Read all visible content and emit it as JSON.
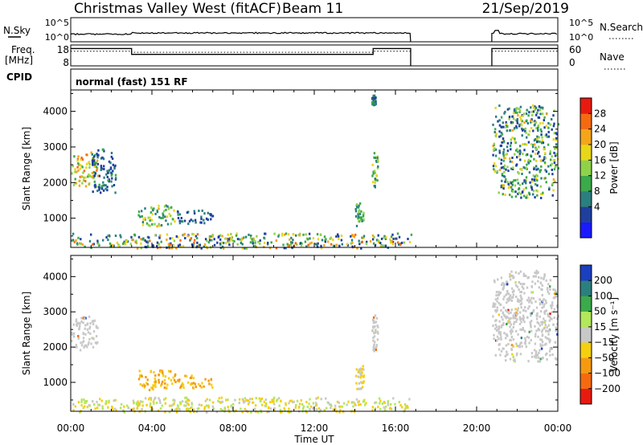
{
  "header": {
    "station_title": "Christmas Valley West (fitACF)",
    "beam": "Beam 11",
    "date": "21/Sep/2019"
  },
  "strips": {
    "nsky_label": "N.Sky",
    "nsearch_label": "N.Search",
    "nsky_ticks": [
      "10^5",
      "10^0"
    ],
    "nsearch_ticks": [
      "10^5",
      "10^0"
    ],
    "freq_label_1": "Freq.",
    "freq_label_2": "[MHz]",
    "freq_ticks": [
      "18",
      "8"
    ],
    "nave_label": "Nave",
    "nave_ticks": [
      "60",
      "0"
    ],
    "cpid_label": "CPID",
    "cpid_text": "normal (fast) 151 RF"
  },
  "colors": {
    "power_scale": [
      "#1a1aff",
      "#1f3f9f",
      "#2b7f7f",
      "#3aaa4a",
      "#8fd24a",
      "#e8d619",
      "#f5a51a",
      "#f56a10",
      "#e81a10"
    ],
    "velocity_scale": [
      "#e81a10",
      "#f56a10",
      "#f59a10",
      "#f5cf10",
      "#c8c8c8",
      "#b2e85a",
      "#3aaa4a",
      "#2b7f7f",
      "#1a3fbf"
    ],
    "ground_scatter": "#c8c8c8"
  },
  "chart_data": [
    {
      "type": "heatmap",
      "name": "power",
      "xlabel": "",
      "ylabel": "Slant Range [km]",
      "colorbar_label": "Power [dB]",
      "colorbar_ticks": [
        "28",
        "24",
        "20",
        "16",
        "12",
        "8",
        "4"
      ],
      "colorbar_range": [
        0,
        32
      ],
      "x_ticks_hours": [
        0,
        4,
        8,
        12,
        16,
        20,
        24
      ],
      "ylim": [
        180,
        4600
      ],
      "y_ticks": [
        1000,
        2000,
        3000,
        4000
      ],
      "y_tick_labels": [
        "1000",
        "2000",
        "3000",
        "4000"
      ],
      "data_gaps_UT": [
        [
          16.75,
          20.75
        ]
      ],
      "regions": [
        {
          "t": [
            0.0,
            1.3
          ],
          "r": [
            1900,
            2900
          ],
          "dB": [
            12,
            30
          ]
        },
        {
          "t": [
            1.0,
            2.2
          ],
          "r": [
            1700,
            3000
          ],
          "dB": [
            4,
            12
          ]
        },
        {
          "t": [
            3.3,
            5.2
          ],
          "r": [
            800,
            1400
          ],
          "dB": [
            8,
            22
          ]
        },
        {
          "t": [
            5.2,
            7.0
          ],
          "r": [
            850,
            1250
          ],
          "dB": [
            4,
            12
          ]
        },
        {
          "t": [
            0.0,
            16.75
          ],
          "r": [
            180,
            600
          ],
          "dB": [
            4,
            28
          ]
        },
        {
          "t": [
            14.0,
            14.4
          ],
          "r": [
            800,
            1500
          ],
          "dB": [
            8,
            16
          ]
        },
        {
          "t": [
            14.8,
            15.1
          ],
          "r": [
            1900,
            3000
          ],
          "dB": [
            8,
            20
          ]
        },
        {
          "t": [
            14.8,
            15.0
          ],
          "r": [
            4200,
            4500
          ],
          "dB": [
            4,
            12
          ]
        },
        {
          "t": [
            20.75,
            24.0
          ],
          "r": [
            1600,
            4200
          ],
          "dB": [
            4,
            22
          ]
        }
      ]
    },
    {
      "type": "heatmap",
      "name": "velocity",
      "xlabel": "Time UT",
      "ylabel": "Slant Range [km]",
      "colorbar_label": "Velocity [m s⁻¹]",
      "colorbar_ticks": [
        "200",
        "100",
        "50",
        "15",
        "−15",
        "−50",
        "−100",
        "−200"
      ],
      "x_ticks_hours": [
        0,
        4,
        8,
        12,
        16,
        20,
        24
      ],
      "x_tick_labels": [
        "00:00",
        "04:00",
        "08:00",
        "12:00",
        "16:00",
        "20:00",
        "00:00"
      ],
      "ylim": [
        180,
        4600
      ],
      "y_ticks": [
        1000,
        2000,
        3000,
        4000
      ],
      "y_tick_labels": [
        "1000",
        "2000",
        "3000",
        "4000"
      ],
      "data_gaps_UT": [
        [
          16.75,
          20.75
        ]
      ],
      "regions": [
        {
          "t": [
            0.0,
            1.3
          ],
          "r": [
            1900,
            2900
          ],
          "kind": "ground"
        },
        {
          "t": [
            3.3,
            5.2
          ],
          "r": [
            800,
            1400
          ],
          "vel": [
            -100,
            -15
          ]
        },
        {
          "t": [
            5.2,
            7.0
          ],
          "r": [
            850,
            1250
          ],
          "vel": [
            -100,
            -15
          ]
        },
        {
          "t": [
            0.0,
            16.75
          ],
          "r": [
            180,
            600
          ],
          "vel": [
            -50,
            50
          ]
        },
        {
          "t": [
            14.0,
            14.4
          ],
          "r": [
            800,
            1500
          ],
          "vel": [
            -50,
            15
          ]
        },
        {
          "t": [
            14.8,
            15.1
          ],
          "r": [
            1900,
            3000
          ],
          "kind": "ground"
        },
        {
          "t": [
            20.75,
            24.0
          ],
          "r": [
            1600,
            4200
          ],
          "kind": "ground"
        }
      ]
    }
  ]
}
